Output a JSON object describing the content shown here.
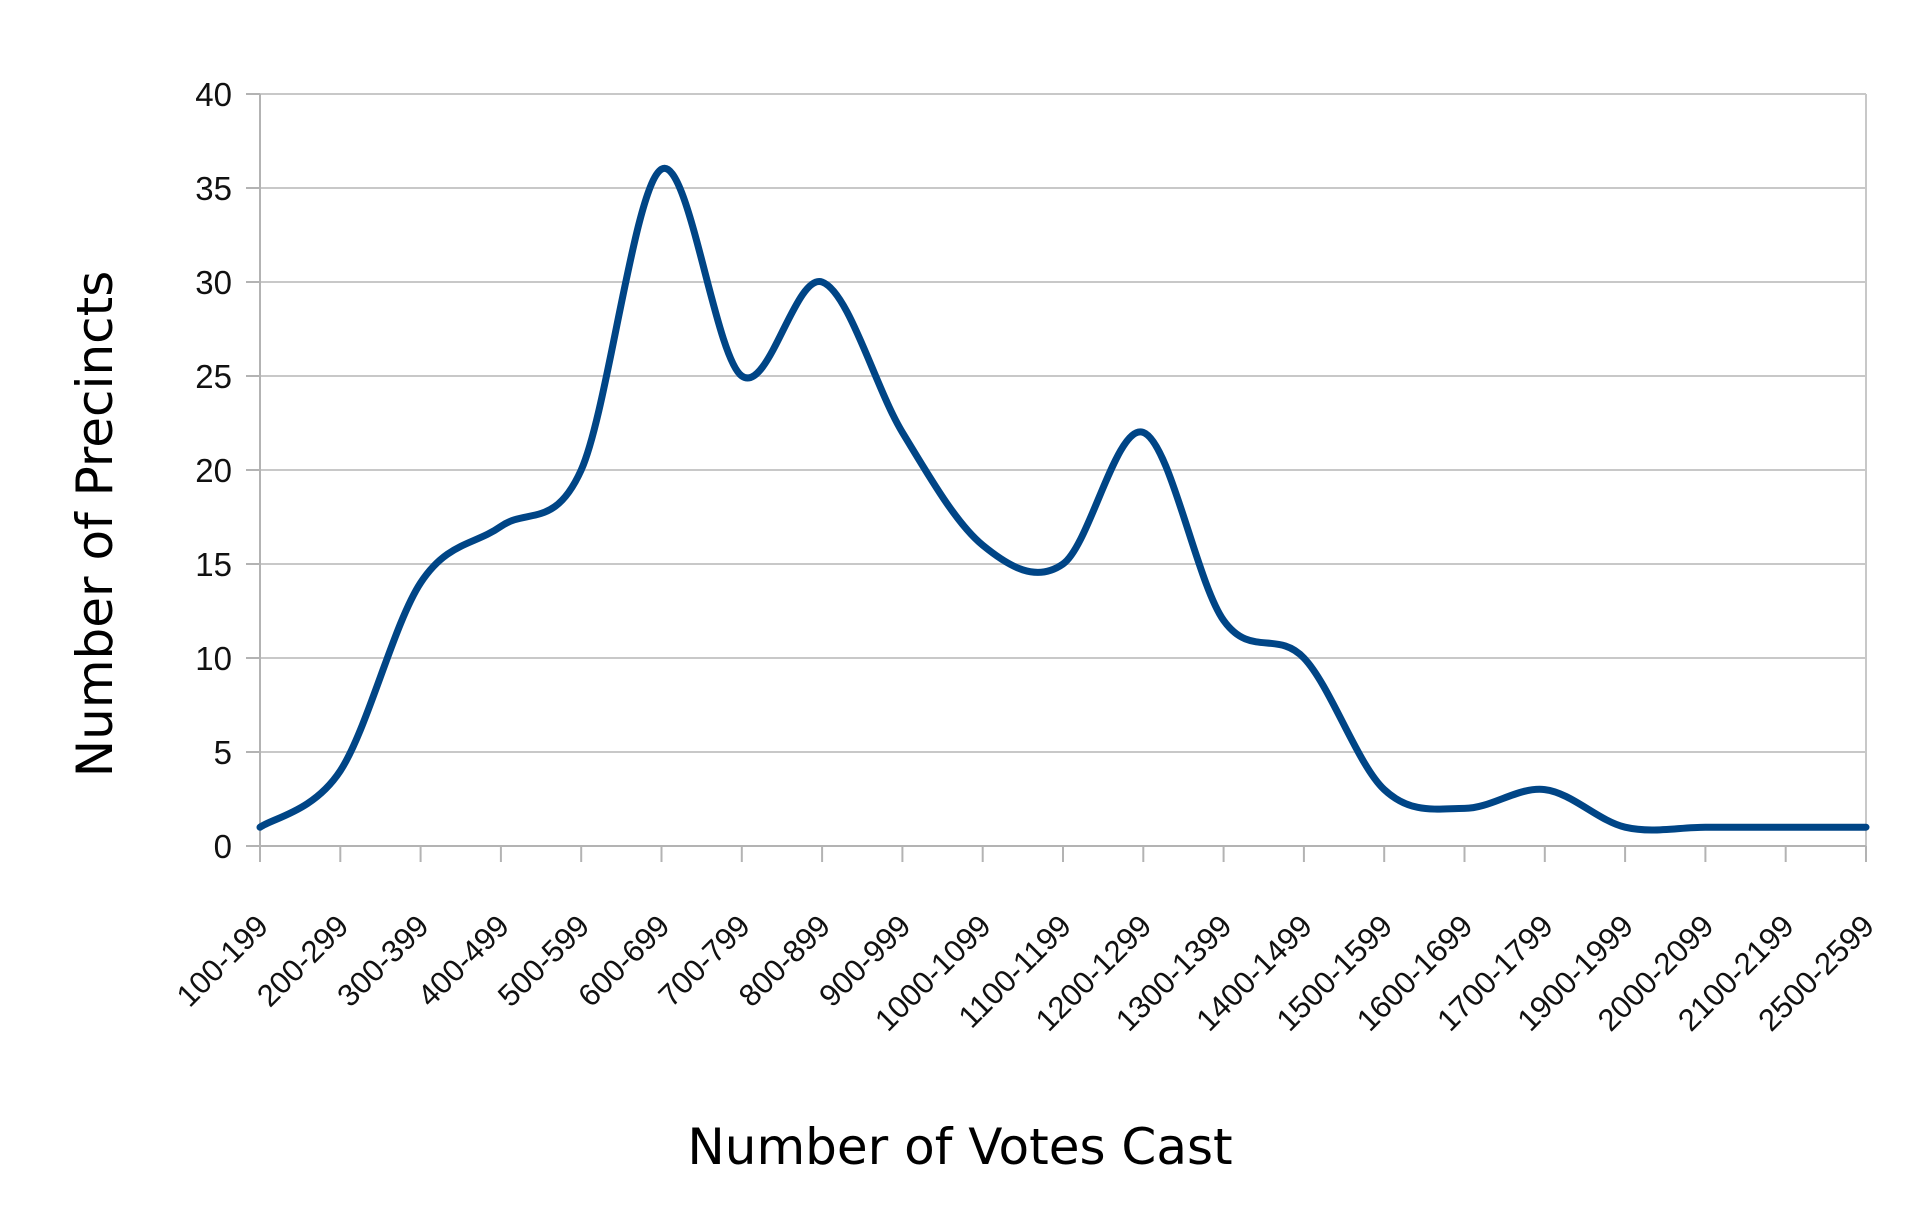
{
  "chart_data": {
    "type": "line",
    "title": "",
    "xlabel": "Number of Votes Cast",
    "ylabel": "Number of Precincts",
    "ylim": [
      0,
      40
    ],
    "yticks": [
      0,
      5,
      10,
      15,
      20,
      25,
      30,
      35,
      40
    ],
    "grid": true,
    "smooth": true,
    "categories": [
      "100-199",
      "200-299",
      "300-399",
      "400-499",
      "500-599",
      "600-699",
      "700-799",
      "800-899",
      "900-999",
      "1000-1099",
      "1100-1199",
      "1200-1299",
      "1300-1399",
      "1400-1499",
      "1500-1599",
      "1600-1699",
      "1700-1799",
      "1900-1999",
      "2000-2099",
      "2100-2199",
      "2500-2599"
    ],
    "series": [
      {
        "values": [
          1,
          4,
          14,
          17,
          20,
          36,
          25,
          30,
          22,
          16,
          15,
          22,
          12,
          10,
          3,
          2,
          3,
          1,
          1,
          1,
          1
        ],
        "color": "#004586"
      }
    ]
  }
}
